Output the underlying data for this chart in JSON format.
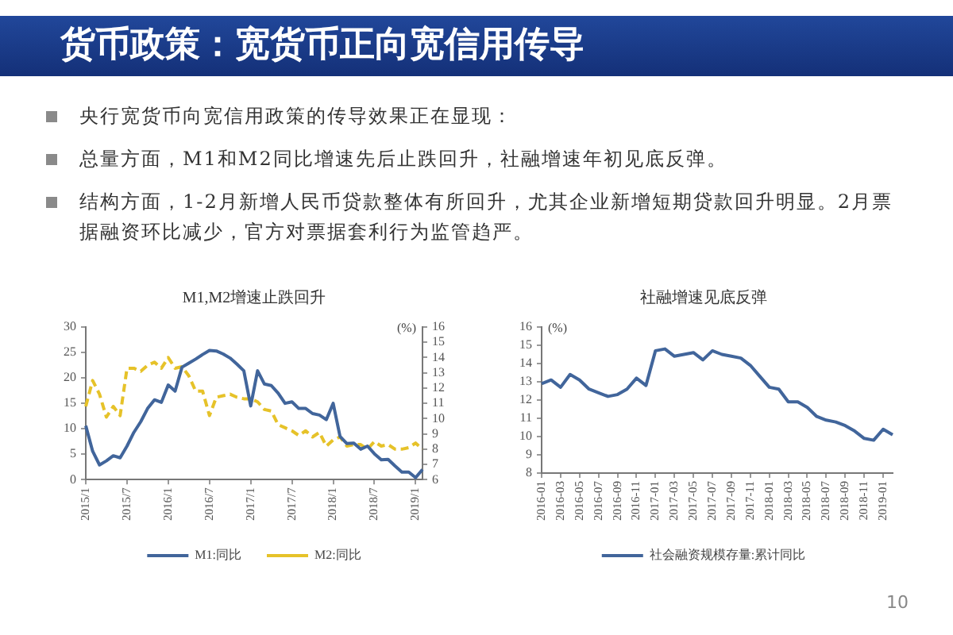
{
  "chart_data": [
    {
      "type": "other",
      "title": "货币政策：宽货币正向宽信用传导",
      "annotations": [
        "央行宽货币向宽信用政策的传导效果正在显现：",
        "总量方面，M1和M2同比增速先后止跌回升，社融增速年初见底反弹。",
        "结构方面，1-2月新增人民币贷款整体有所回升，尤其企业新增短期贷款回升明显。2月票据融资环比减少，官方对票据套利行为监管趋严。",
        "10"
      ]
    },
    {
      "type": "line",
      "title": "M1,M2增速止跌回升",
      "categories": [
        "2015/1",
        null,
        null,
        null,
        null,
        null,
        "2015/7",
        null,
        null,
        null,
        null,
        null,
        "2016/1",
        null,
        null,
        null,
        null,
        null,
        "2016/7",
        null,
        null,
        null,
        null,
        null,
        "2017/1",
        null,
        null,
        null,
        null,
        null,
        "2017/7",
        null,
        null,
        null,
        null,
        null,
        "2018/1",
        null,
        null,
        null,
        null,
        null,
        "2018/7",
        null,
        null,
        null,
        null,
        null,
        "2019/1",
        null
      ],
      "series": [
        {
          "name": "M1:同比",
          "color": "#41659b",
          "line_style": "solid",
          "values": [
            10.6,
            5.6,
            2.9,
            3.7,
            4.7,
            4.3,
            6.6,
            9.3,
            11.4,
            14.0,
            15.7,
            15.2,
            18.6,
            17.4,
            22.1,
            22.9,
            23.7,
            24.6,
            25.4,
            25.3,
            24.7,
            23.9,
            22.7,
            21.4,
            14.5,
            21.4,
            18.8,
            18.5,
            17.0,
            15.0,
            15.3,
            14.0,
            14.0,
            13.0,
            12.7,
            11.8,
            15.0,
            8.5,
            7.1,
            7.2,
            6.0,
            6.6,
            5.1,
            3.9,
            4.0,
            2.7,
            1.5,
            1.5,
            0.4,
            2.0
          ]
        },
        {
          "name": "M2:同比",
          "color": "#e6c229",
          "line_style": "dashed",
          "axis": "y2",
          "values": [
            10.8,
            12.5,
            11.6,
            10.1,
            10.8,
            10.2,
            13.3,
            13.3,
            13.1,
            13.5,
            13.7,
            13.3,
            14.0,
            13.3,
            13.4,
            12.8,
            11.8,
            11.8,
            10.2,
            11.4,
            11.5,
            11.6,
            11.4,
            11.3,
            11.3,
            11.1,
            10.6,
            10.5,
            9.6,
            9.4,
            9.2,
            8.9,
            9.2,
            8.8,
            9.1,
            8.2,
            8.6,
            8.8,
            8.2,
            8.3,
            8.3,
            8.0,
            8.5,
            8.2,
            8.3,
            8.0,
            8.0,
            8.1,
            8.4,
            8.0
          ]
        }
      ],
      "ylim": [
        0,
        30
      ],
      "yticks": [
        0,
        5,
        10,
        15,
        20,
        25,
        30
      ],
      "y2lim": [
        6,
        16
      ],
      "y2ticks": [
        6,
        7,
        8,
        9,
        10,
        11,
        12,
        13,
        14,
        15,
        16
      ],
      "y2label": "(%)",
      "grid": false,
      "legend": "bottom",
      "marker": "none"
    },
    {
      "type": "line",
      "title": "社融增速见底反弹",
      "categories": [
        "2016-01",
        null,
        "2016-03",
        null,
        "2016-05",
        null,
        "2016-07",
        null,
        "2016-09",
        null,
        "2016-11",
        null,
        "2017-01",
        null,
        "2017-03",
        null,
        "2017-05",
        null,
        "2017-07",
        null,
        "2017-09",
        null,
        "2017-11",
        null,
        "2018-01",
        null,
        "2018-03",
        null,
        "2018-05",
        null,
        "2018-07",
        null,
        "2018-09",
        null,
        "2018-11",
        null,
        "2019-01",
        null
      ],
      "series": [
        {
          "name": "社会融资规模存量:累计同比",
          "color": "#41659b",
          "line_style": "solid",
          "values": [
            12.9,
            13.1,
            12.7,
            13.4,
            13.1,
            12.6,
            12.4,
            12.2,
            12.3,
            12.6,
            13.2,
            12.8,
            14.7,
            14.8,
            14.4,
            14.5,
            14.6,
            14.2,
            14.7,
            14.5,
            14.4,
            14.3,
            13.9,
            13.3,
            12.7,
            12.6,
            11.9,
            11.9,
            11.6,
            11.1,
            10.9,
            10.8,
            10.6,
            10.3,
            9.9,
            9.8,
            10.4,
            10.1
          ]
        }
      ],
      "ylim": [
        8,
        16
      ],
      "yticks": [
        8,
        9,
        10,
        11,
        12,
        13,
        14,
        15,
        16
      ],
      "ylabel": "(%)",
      "grid": false,
      "legend": "bottom",
      "marker": "none"
    }
  ]
}
